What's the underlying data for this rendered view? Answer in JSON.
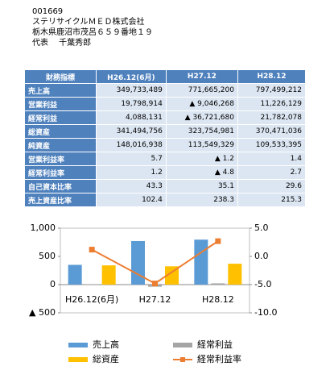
{
  "header": {
    "lines": [
      "001669",
      "ステリサイクルＭＥＤ株式会社",
      "栃木県鹿沼市茂呂６５９番地１９",
      "代表　 千葉秀郎"
    ]
  },
  "table": {
    "header": [
      "財務指標",
      "H26.12(6月)",
      "H27.12",
      "H28.12"
    ],
    "rows": [
      [
        "売上高",
        "349,733,489",
        "771,665,200",
        "797,499,212"
      ],
      [
        "営業利益",
        "19,798,914",
        "▲ 9,046,268",
        "11,226,129"
      ],
      [
        "経常利益",
        "4,088,131",
        "▲ 36,721,680",
        "21,782,078"
      ],
      [
        "総資産",
        "341,494,756",
        "323,754,981",
        "370,471,036"
      ],
      [
        "純資産",
        "148,016,938",
        "113,549,329",
        "109,533,395"
      ],
      [
        "営業利益率",
        "5.7",
        "▲ 1.2",
        "1.4"
      ],
      [
        "経常利益率",
        "1.2",
        "▲ 4.8",
        "2.7"
      ],
      [
        "自己資本比率",
        "43.3",
        "35.1",
        "29.6"
      ],
      [
        "売上資産比率",
        "102.4",
        "238.3",
        "215.3"
      ]
    ]
  },
  "chart_data": {
    "type": "bar",
    "categories": [
      "H26.12(6月)",
      "H27.12",
      "H28.12"
    ],
    "series": [
      {
        "name": "売上高",
        "color": "#5b9bd5",
        "values": [
          350,
          772,
          797
        ]
      },
      {
        "name": "経常利益",
        "color": "#a5a5a5",
        "values": [
          4,
          -37,
          22
        ]
      },
      {
        "name": "総資産",
        "color": "#ffc000",
        "values": [
          341,
          324,
          370
        ]
      },
      {
        "name": "経常利益率",
        "color": "#ed7d31",
        "values": [
          1.2,
          -4.8,
          2.7
        ],
        "axis": "y2",
        "type": "line"
      }
    ],
    "ylim": [
      -500,
      1000
    ],
    "yticks": [
      {
        "value": 1000,
        "label": "1,000"
      },
      500,
      0,
      {
        "value": -500,
        "label": "▲ 500"
      }
    ],
    "y2lim": [
      -10,
      5
    ],
    "y2ticks": [
      {
        "value": 5,
        "label": "5.0"
      },
      {
        "value": 0,
        "label": "0.0"
      },
      {
        "value": -5,
        "label": "-5.0"
      },
      {
        "value": -10,
        "label": "-10.0"
      }
    ]
  }
}
